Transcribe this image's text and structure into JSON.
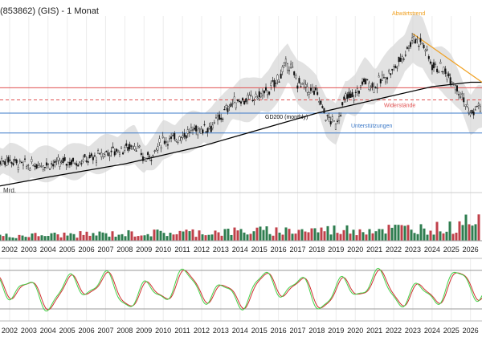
{
  "header": {
    "title": "(853862) (GIS) - 1 Monat"
  },
  "colors": {
    "up": "#2e7d4f",
    "down": "#c0404a",
    "band": "#d6d6d6",
    "ma": "#000000",
    "resistance": "#e05050",
    "support": "#3a78c8",
    "trend": "#f0a020",
    "osc_fast": "#45d24a",
    "osc_slow": "#d03030"
  },
  "chart_data": {
    "type": "candlestick",
    "years": [
      "2002",
      "2003",
      "2004",
      "2005",
      "2006",
      "2007",
      "2008",
      "2009",
      "2010",
      "2011",
      "2012",
      "2013",
      "2014",
      "2015",
      "2016",
      "2017",
      "2018",
      "2019",
      "2020",
      "2021",
      "2022",
      "2023",
      "2024",
      "2025",
      "2026"
    ],
    "price_series": [
      {
        "x": 2001.5,
        "close": 24
      },
      {
        "x": 2002.0,
        "close": 25
      },
      {
        "x": 2002.5,
        "close": 23
      },
      {
        "x": 2003.0,
        "close": 22
      },
      {
        "x": 2003.5,
        "close": 23
      },
      {
        "x": 2004.0,
        "close": 23
      },
      {
        "x": 2004.5,
        "close": 23
      },
      {
        "x": 2005.0,
        "close": 24
      },
      {
        "x": 2005.5,
        "close": 24
      },
      {
        "x": 2006.0,
        "close": 25
      },
      {
        "x": 2006.5,
        "close": 26
      },
      {
        "x": 2007.0,
        "close": 28
      },
      {
        "x": 2007.5,
        "close": 29
      },
      {
        "x": 2008.0,
        "close": 30
      },
      {
        "x": 2008.5,
        "close": 32
      },
      {
        "x": 2009.0,
        "close": 25
      },
      {
        "x": 2009.5,
        "close": 28
      },
      {
        "x": 2010.0,
        "close": 34
      },
      {
        "x": 2010.5,
        "close": 34
      },
      {
        "x": 2011.0,
        "close": 36
      },
      {
        "x": 2011.5,
        "close": 38
      },
      {
        "x": 2012.0,
        "close": 39
      },
      {
        "x": 2012.5,
        "close": 40
      },
      {
        "x": 2013.0,
        "close": 44
      },
      {
        "x": 2013.5,
        "close": 50
      },
      {
        "x": 2014.0,
        "close": 52
      },
      {
        "x": 2014.5,
        "close": 52
      },
      {
        "x": 2015.0,
        "close": 54
      },
      {
        "x": 2015.5,
        "close": 56
      },
      {
        "x": 2016.0,
        "close": 62
      },
      {
        "x": 2016.5,
        "close": 69
      },
      {
        "x": 2017.0,
        "close": 60
      },
      {
        "x": 2017.5,
        "close": 57
      },
      {
        "x": 2018.0,
        "close": 55
      },
      {
        "x": 2018.5,
        "close": 44
      },
      {
        "x": 2019.0,
        "close": 41
      },
      {
        "x": 2019.5,
        "close": 53
      },
      {
        "x": 2020.0,
        "close": 54
      },
      {
        "x": 2020.5,
        "close": 61
      },
      {
        "x": 2021.0,
        "close": 58
      },
      {
        "x": 2021.5,
        "close": 62
      },
      {
        "x": 2022.0,
        "close": 66
      },
      {
        "x": 2022.5,
        "close": 72
      },
      {
        "x": 2023.0,
        "close": 80
      },
      {
        "x": 2023.5,
        "close": 78
      },
      {
        "x": 2024.0,
        "close": 68
      },
      {
        "x": 2024.5,
        "close": 66
      },
      {
        "x": 2025.0,
        "close": 62
      },
      {
        "x": 2025.5,
        "close": 55
      },
      {
        "x": 2026.0,
        "close": 45
      },
      {
        "x": 2026.4,
        "close": 49
      }
    ],
    "gd200": [
      {
        "x": 2001.5,
        "y": 13
      },
      {
        "x": 2004.0,
        "y": 17
      },
      {
        "x": 2006.0,
        "y": 20
      },
      {
        "x": 2008.0,
        "y": 23
      },
      {
        "x": 2010.0,
        "y": 27
      },
      {
        "x": 2012.0,
        "y": 31
      },
      {
        "x": 2014.0,
        "y": 36
      },
      {
        "x": 2016.0,
        "y": 41
      },
      {
        "x": 2018.0,
        "y": 46
      },
      {
        "x": 2020.0,
        "y": 50
      },
      {
        "x": 2022.0,
        "y": 54
      },
      {
        "x": 2024.0,
        "y": 58
      },
      {
        "x": 2026.0,
        "y": 60
      },
      {
        "x": 2026.6,
        "y": 60
      }
    ],
    "resistance_lines": [
      {
        "y": 57.5,
        "style": "solid"
      },
      {
        "y": 52.0,
        "style": "dashed",
        "label": "Widerstände"
      }
    ],
    "support_lines": [
      {
        "y": 46.0,
        "label": "Unterstützungen"
      },
      {
        "y": 37.0
      }
    ],
    "trendline": {
      "label": "Abwärtstrend",
      "from": {
        "x": 2023.0,
        "y": 82
      },
      "to": {
        "x": 2026.6,
        "y": 60
      }
    },
    "ma_label": "GD200 (monthly)",
    "volume_label": "Mrd.",
    "price_ylim": [
      10,
      90
    ],
    "xlim": [
      2001.5,
      2026.6
    ]
  }
}
